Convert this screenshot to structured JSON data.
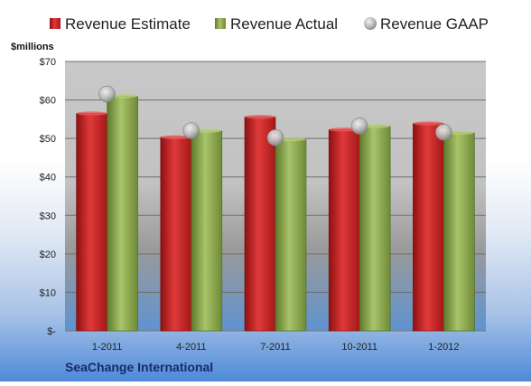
{
  "chart_data": {
    "type": "bar",
    "title": "",
    "ylabel": "$millions",
    "xlabel": "",
    "footer_label": "SeaChange International",
    "categories": [
      "1-2011",
      "4-2011",
      "7-2011",
      "10-2011",
      "1-2012"
    ],
    "series": [
      {
        "name": "Revenue Estimate",
        "kind": "bar",
        "color": "#cc2222",
        "values": [
          56.5,
          50.3,
          55.6,
          52.3,
          53.9
        ]
      },
      {
        "name": "Revenue Actual",
        "kind": "bar",
        "color": "#8aaa4c",
        "values": [
          61.0,
          52.0,
          49.8,
          53.2,
          51.5
        ]
      },
      {
        "name": "Revenue GAAP",
        "kind": "marker",
        "color": "#b8b8b8",
        "values": [
          61.5,
          52.0,
          50.2,
          53.2,
          51.6
        ]
      }
    ],
    "ylim": [
      0,
      70
    ],
    "yticks": [
      {
        "value": 0,
        "label": "$-"
      },
      {
        "value": 10,
        "label": "$10"
      },
      {
        "value": 20,
        "label": "$20"
      },
      {
        "value": 30,
        "label": "$30"
      },
      {
        "value": 40,
        "label": "$40"
      },
      {
        "value": 50,
        "label": "$50"
      },
      {
        "value": 60,
        "label": "$60"
      },
      {
        "value": 70,
        "label": "$70"
      }
    ],
    "grid": true,
    "legend_position": "top"
  }
}
